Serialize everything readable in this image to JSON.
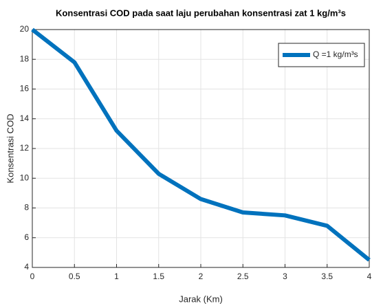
{
  "chart_data": {
    "type": "line",
    "title": "Konsentrasi COD pada saat laju perubahan konsentrasi zat 1 kg/m³s",
    "xlabel": "Jarak (Km)",
    "ylabel": "Konsentrasi COD",
    "x": [
      0,
      0.5,
      1,
      1.5,
      2,
      2.5,
      3,
      3.5,
      4
    ],
    "series": [
      {
        "name": "Q =1 kg/m³s",
        "color": "#0072bd",
        "values": [
          20,
          17.8,
          13.2,
          10.3,
          8.6,
          7.7,
          7.5,
          6.8,
          4.5
        ]
      }
    ],
    "xlim": [
      0,
      4
    ],
    "xticks": [
      0,
      0.5,
      1,
      1.5,
      2,
      2.5,
      3,
      3.5,
      4
    ],
    "ylim": [
      4,
      20
    ],
    "yticks": [
      4,
      6,
      8,
      10,
      12,
      14,
      16,
      18,
      20
    ],
    "grid": true,
    "legend": "northeast"
  }
}
